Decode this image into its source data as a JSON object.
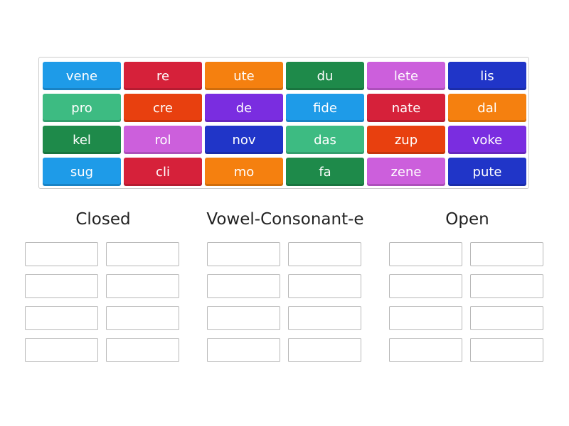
{
  "tiles": [
    [
      "vene",
      "re",
      "ute",
      "du",
      "lete",
      "lis"
    ],
    [
      "pro",
      "cre",
      "de",
      "fide",
      "nate",
      "dal"
    ],
    [
      "kel",
      "rol",
      "nov",
      "das",
      "zup",
      "voke"
    ],
    [
      "sug",
      "cli",
      "mo",
      "fa",
      "zene",
      "pute"
    ]
  ],
  "tile_colors": [
    [
      "#1e9be8",
      "#d6213a",
      "#f5800f",
      "#1e8a4a",
      "#cc5fdc",
      "#2035c8"
    ],
    [
      "#3dbb82",
      "#e8400f",
      "#7a2de0",
      "#1e9be8",
      "#d6213a",
      "#f5800f"
    ],
    [
      "#1e8a4a",
      "#cc5fdc",
      "#2035c8",
      "#3dbb82",
      "#e8400f",
      "#7a2de0"
    ],
    [
      "#1e9be8",
      "#d6213a",
      "#f5800f",
      "#1e8a4a",
      "#cc5fdc",
      "#2035c8"
    ]
  ],
  "groups": [
    {
      "title": "Closed"
    },
    {
      "title": "Vowel-Consonant-e"
    },
    {
      "title": "Open"
    }
  ]
}
